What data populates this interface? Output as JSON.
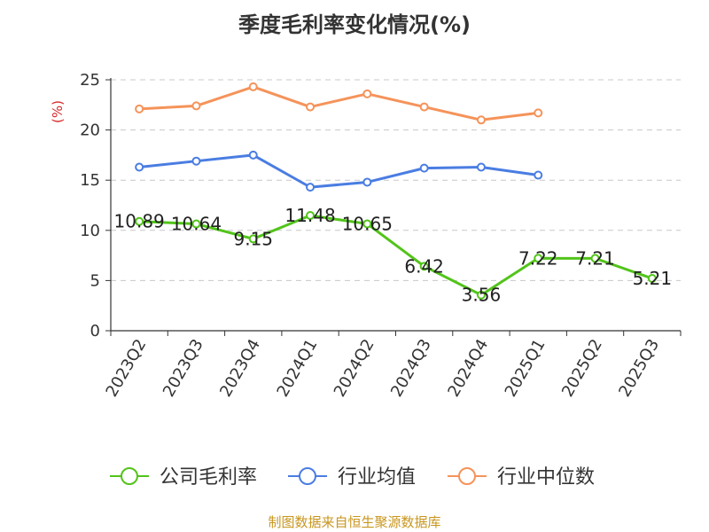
{
  "chart_data": {
    "type": "line",
    "title": "季度毛利率变化情况(%)",
    "ylabel": "(%)",
    "ylim": [
      0,
      25
    ],
    "yticks": [
      0,
      5,
      10,
      15,
      20,
      25
    ],
    "grid": true,
    "legend_position": "bottom",
    "categories": [
      "2023Q2",
      "2023Q3",
      "2023Q4",
      "2024Q1",
      "2024Q2",
      "2024Q3",
      "2024Q4",
      "2025Q1",
      "2025Q2",
      "2025Q3"
    ],
    "series": [
      {
        "name": "公司毛利率",
        "color": "#52c41a",
        "values": [
          10.89,
          10.64,
          9.15,
          11.48,
          10.65,
          6.42,
          3.56,
          7.22,
          7.21,
          5.21
        ],
        "labels": [
          "10.89",
          "10.64",
          "9.15",
          "11.48",
          "10.65",
          "6.42",
          "3.56",
          "7.22",
          "7.21",
          "5.21"
        ]
      },
      {
        "name": "行业均值",
        "color": "#4a7de2",
        "values": [
          16.3,
          16.9,
          17.5,
          14.3,
          14.8,
          16.2,
          16.3,
          15.5,
          null,
          null
        ]
      },
      {
        "name": "行业中位数",
        "color": "#f5935a",
        "values": [
          22.1,
          22.4,
          24.3,
          22.3,
          23.6,
          22.3,
          21.0,
          21.7,
          null,
          null
        ]
      }
    ]
  },
  "footer": {
    "text": "制图数据来自恒生聚源数据库",
    "color": "#c8961e"
  },
  "colors": {
    "ylabel": "#d62728",
    "axis": "#333333",
    "grid": "#c8c8c8"
  }
}
